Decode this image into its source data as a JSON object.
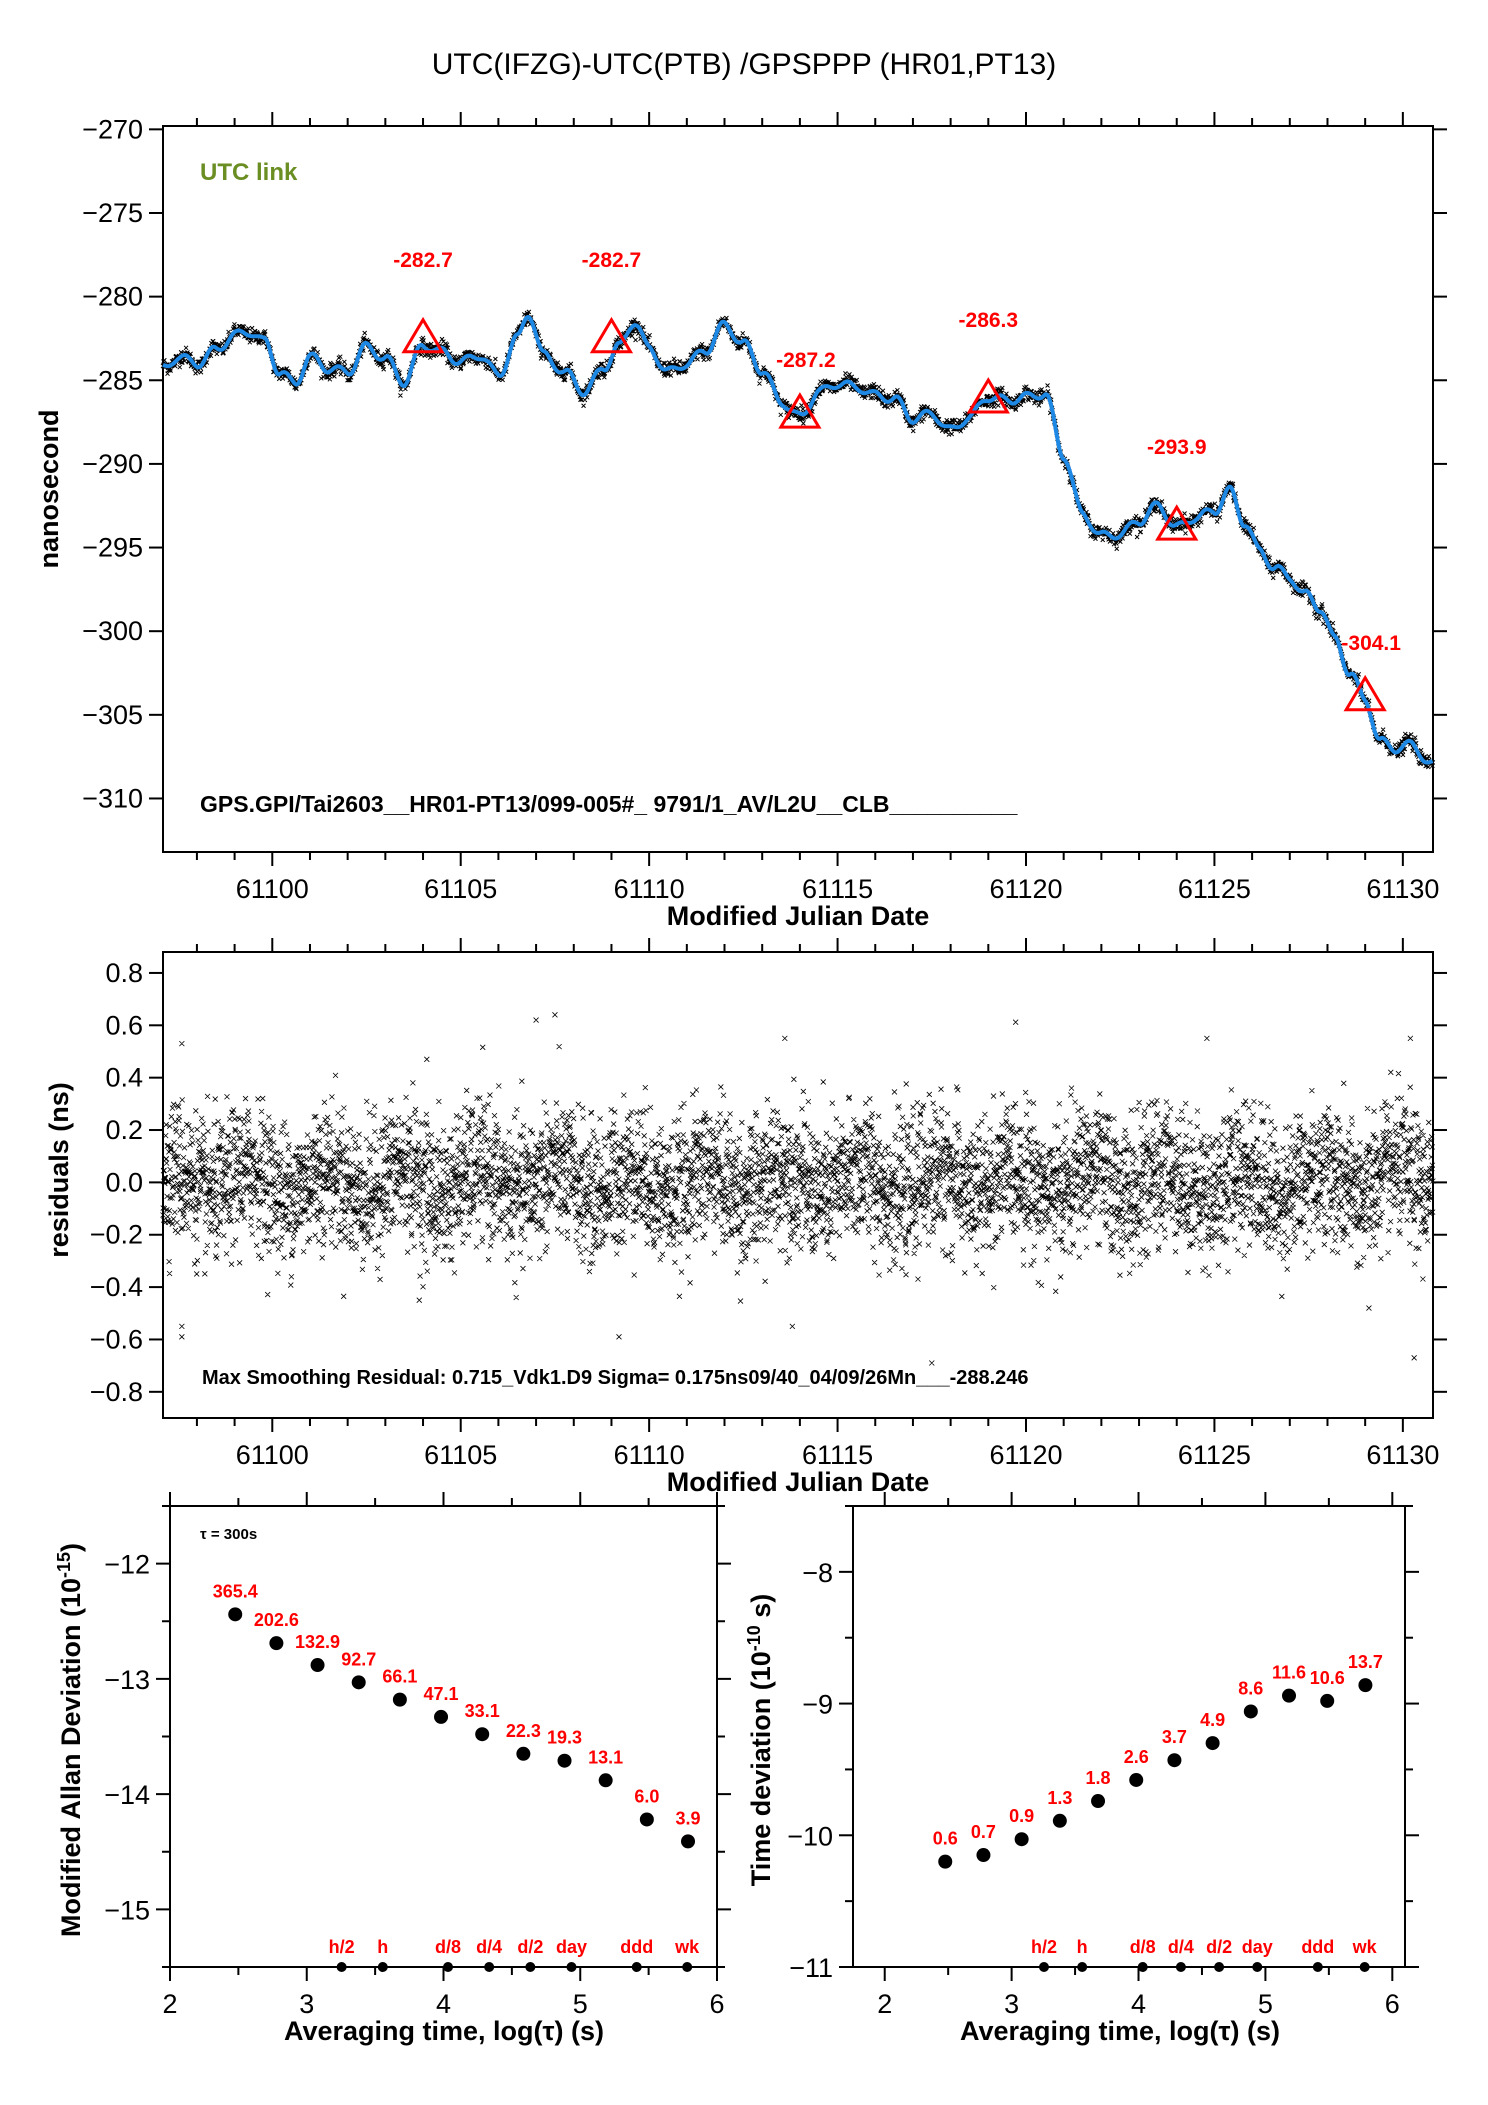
{
  "chart_data": [
    {
      "id": "time-series",
      "type": "line",
      "title": "UTC(IFZG)-UTC(PTB)  /GPSPPP  (HR01,PT13)",
      "annotation_top": "UTC link",
      "annotation_bottom": "GPS.GPI/Tai2603__HR01-PT13/099-005#_  9791/1_AV/L2U__CLB__________",
      "xlabel": "Modified Julian Date",
      "ylabel": "nanosecond",
      "xlim": [
        61097.1,
        61130.8
      ],
      "ylim": [
        -313.2,
        -269.8
      ],
      "xticks": [
        61100,
        61105,
        61110,
        61115,
        61120,
        61125,
        61130
      ],
      "yticks": [
        -270,
        -275,
        -280,
        -285,
        -290,
        -295,
        -300,
        -305,
        -310
      ],
      "series_colors": {
        "raw": "#000000",
        "smoothed": "#1e88e5",
        "markers": "#ff0000",
        "label_color": "#6b8e23"
      },
      "smoothed_curve": {
        "x": [
          61097.1,
          61097.5,
          61098.0,
          61098.5,
          61099.0,
          61099.4,
          61099.8,
          61100.2,
          61100.6,
          61101.0,
          61101.5,
          61102.0,
          61102.5,
          61103.0,
          61103.5,
          61104.0,
          61104.5,
          61105.0,
          61105.5,
          61106.0,
          61106.5,
          61106.8,
          61107.2,
          61107.8,
          61108.3,
          61108.8,
          61109.2,
          61109.6,
          61110.0,
          61110.5,
          61111.0,
          61111.5,
          61112.0,
          61112.5,
          61113.0,
          61113.5,
          61114.0,
          61114.5,
          61115.0,
          61115.5,
          61116.0,
          61116.5,
          61117.0,
          61117.5,
          61118.0,
          61118.5,
          61119.0,
          61119.5,
          61120.0,
          61120.5,
          61121.0,
          61121.5,
          61122.0,
          61122.5,
          61123.0,
          61123.5,
          61124.0,
          61124.5,
          61125.0,
          61125.4,
          61125.8,
          61126.2,
          61126.6,
          61127.0,
          61127.4,
          61127.8,
          61128.2,
          61128.6,
          61129.0,
          61129.4,
          61129.8,
          61130.2,
          61130.8
        ],
        "y": [
          -284.3,
          -283.6,
          -284.0,
          -283.2,
          -282.3,
          -282.1,
          -282.7,
          -284.5,
          -285.2,
          -283.6,
          -284.3,
          -284.5,
          -283.0,
          -283.7,
          -285.1,
          -282.9,
          -283.3,
          -283.9,
          -283.5,
          -284.7,
          -282.5,
          -281.0,
          -283.5,
          -284.6,
          -285.7,
          -284.2,
          -283.0,
          -281.5,
          -283.1,
          -284.5,
          -284.0,
          -283.2,
          -281.7,
          -282.8,
          -284.4,
          -286.3,
          -287.2,
          -285.7,
          -285.2,
          -285.4,
          -285.9,
          -286.1,
          -287.3,
          -287.0,
          -288.0,
          -287.2,
          -286.0,
          -286.2,
          -286.0,
          -285.8,
          -289.5,
          -293.0,
          -294.3,
          -294.2,
          -293.4,
          -292.5,
          -293.8,
          -293.2,
          -292.8,
          -291.6,
          -293.5,
          -295.2,
          -296.2,
          -296.8,
          -297.8,
          -298.6,
          -300.5,
          -302.5,
          -304.1,
          -306.6,
          -307.0,
          -306.8,
          -308.0
        ]
      },
      "markers": [
        {
          "mjd": 61104.0,
          "value": -282.7,
          "label": "-282.7"
        },
        {
          "mjd": 61109.0,
          "value": -282.7,
          "label": "-282.7"
        },
        {
          "mjd": 61114.0,
          "value": -287.2,
          "label": "-287.2"
        },
        {
          "mjd": 61119.0,
          "value": -286.3,
          "label": "-286.3"
        },
        {
          "mjd": 61124.0,
          "value": -293.9,
          "label": "-293.9"
        },
        {
          "mjd": 61129.0,
          "value": -304.1,
          "label": "-304.1"
        }
      ]
    },
    {
      "id": "residuals",
      "type": "scatter",
      "xlabel": "Modified Julian Date",
      "ylabel": "residuals (ns)",
      "xlim": [
        61097.1,
        61130.8
      ],
      "ylim": [
        -0.9,
        0.88
      ],
      "xticks": [
        61100,
        61105,
        61110,
        61115,
        61120,
        61125,
        61130
      ],
      "yticks": [
        0.8,
        0.6,
        0.4,
        0.2,
        0.0,
        -0.2,
        -0.4,
        -0.6,
        -0.8
      ],
      "ytick_labels": [
        "0.8",
        "0.6",
        "0.4",
        "0.2",
        "0.0",
        "−0.2",
        "−0.4",
        "−0.6",
        "−0.8"
      ],
      "marker": "x",
      "sigma_ns": 0.175,
      "max_residual": 0.715,
      "annotation": "Max Smoothing Residual: 0.715_Vdk1.D9  Sigma= 0.175ns09/40_04/09/26Mn___-288.246",
      "outliers": [
        {
          "mjd": 61097.6,
          "value": 0.53
        },
        {
          "mjd": 61097.6,
          "value": -0.55
        },
        {
          "mjd": 61097.6,
          "value": -0.59
        },
        {
          "mjd": 61103.9,
          "value": -0.45
        },
        {
          "mjd": 61104.1,
          "value": 0.47
        },
        {
          "mjd": 61107.0,
          "value": 0.62
        },
        {
          "mjd": 61107.5,
          "value": 0.64
        },
        {
          "mjd": 61109.2,
          "value": -0.59
        },
        {
          "mjd": 61113.6,
          "value": 0.55
        },
        {
          "mjd": 61113.8,
          "value": -0.55
        },
        {
          "mjd": 61117.5,
          "value": -0.69
        },
        {
          "mjd": 61124.8,
          "value": 0.55
        },
        {
          "mjd": 61129.1,
          "value": -0.48
        },
        {
          "mjd": 61130.2,
          "value": 0.55
        },
        {
          "mjd": 61130.3,
          "value": -0.67
        }
      ]
    },
    {
      "id": "modified-allan-deviation",
      "type": "scatter",
      "xlabel": "Averaging time, log(τ) (s)",
      "ylabel": "Modified Allan Deviation (10^-15)",
      "ylabel_main": "Modified Allan Deviation (10",
      "ylabel_sup": "-15",
      "ylabel_end": ")",
      "xlim": [
        2,
        6
      ],
      "ylim": [
        -15.5,
        -11.5
      ],
      "xticks": [
        2,
        3,
        4,
        5,
        6
      ],
      "yticks": [
        -12,
        -13,
        -14,
        -15
      ],
      "ytick_labels": [
        "−12",
        "−13",
        "−14",
        "−15"
      ],
      "tau_note": "τ = 300s",
      "points": [
        {
          "x": 2.477,
          "y": -12.44,
          "label": "365.4"
        },
        {
          "x": 2.778,
          "y": -12.69,
          "label": "202.6"
        },
        {
          "x": 3.079,
          "y": -12.88,
          "label": "132.9"
        },
        {
          "x": 3.38,
          "y": -13.03,
          "label": "92.7"
        },
        {
          "x": 3.681,
          "y": -13.18,
          "label": "66.1"
        },
        {
          "x": 3.982,
          "y": -13.33,
          "label": "47.1"
        },
        {
          "x": 4.283,
          "y": -13.48,
          "label": "33.1"
        },
        {
          "x": 4.584,
          "y": -13.65,
          "label": "22.3"
        },
        {
          "x": 4.885,
          "y": -13.71,
          "label": "19.3"
        },
        {
          "x": 5.186,
          "y": -13.88,
          "label": "13.1"
        },
        {
          "x": 5.487,
          "y": -14.22,
          "label": "6.0"
        },
        {
          "x": 5.788,
          "y": -14.41,
          "label": "3.9"
        }
      ],
      "time_markers": [
        {
          "x": 3.255,
          "label": "h/2"
        },
        {
          "x": 3.556,
          "label": "h"
        },
        {
          "x": 4.033,
          "label": "d/8"
        },
        {
          "x": 4.334,
          "label": "d/4"
        },
        {
          "x": 4.635,
          "label": "d/2"
        },
        {
          "x": 4.936,
          "label": "day"
        },
        {
          "x": 5.413,
          "label": "ddd"
        },
        {
          "x": 5.782,
          "label": "wk"
        }
      ]
    },
    {
      "id": "time-deviation",
      "type": "scatter",
      "xlabel": "Averaging time, log(τ) (s)",
      "ylabel": "Time deviation (10^-10 s)",
      "ylabel_main": "Time deviation (10",
      "ylabel_sup": "-10",
      "ylabel_end": " s)",
      "xlim": [
        1.75,
        6.1
      ],
      "ylim": [
        -11,
        -7.5
      ],
      "xticks": [
        2,
        3,
        4,
        5,
        6
      ],
      "yticks": [
        -8,
        -9,
        -10,
        -11
      ],
      "ytick_labels": [
        "−8",
        "−9",
        "−10",
        "−11"
      ],
      "points": [
        {
          "x": 2.477,
          "y": -10.2,
          "label": "0.6"
        },
        {
          "x": 2.778,
          "y": -10.15,
          "label": "0.7"
        },
        {
          "x": 3.079,
          "y": -10.03,
          "label": "0.9"
        },
        {
          "x": 3.38,
          "y": -9.89,
          "label": "1.3"
        },
        {
          "x": 3.681,
          "y": -9.74,
          "label": "1.8"
        },
        {
          "x": 3.982,
          "y": -9.58,
          "label": "2.6"
        },
        {
          "x": 4.283,
          "y": -9.43,
          "label": "3.7"
        },
        {
          "x": 4.584,
          "y": -9.3,
          "label": "4.9"
        },
        {
          "x": 4.885,
          "y": -9.06,
          "label": "8.6"
        },
        {
          "x": 5.186,
          "y": -8.94,
          "label": "11.6"
        },
        {
          "x": 5.487,
          "y": -8.98,
          "label": "10.6"
        },
        {
          "x": 5.788,
          "y": -8.86,
          "label": "13.7"
        }
      ],
      "time_markers": [
        {
          "x": 3.255,
          "label": "h/2"
        },
        {
          "x": 3.556,
          "label": "h"
        },
        {
          "x": 4.033,
          "label": "d/8"
        },
        {
          "x": 4.334,
          "label": "d/4"
        },
        {
          "x": 4.635,
          "label": "d/2"
        },
        {
          "x": 4.936,
          "label": "day"
        },
        {
          "x": 5.413,
          "label": "ddd"
        },
        {
          "x": 5.782,
          "label": "wk"
        }
      ]
    }
  ]
}
